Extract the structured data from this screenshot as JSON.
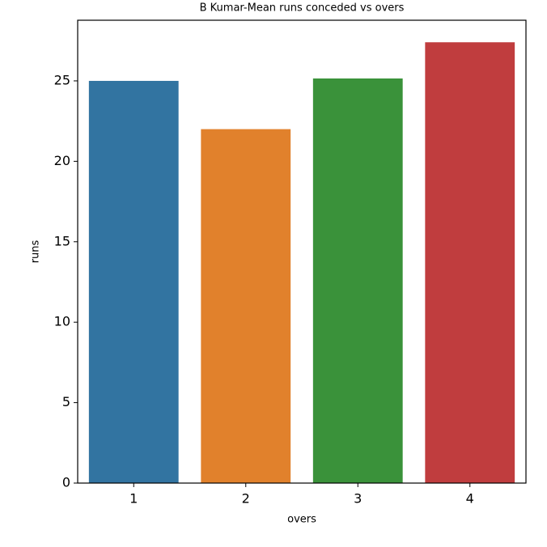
{
  "chart_data": {
    "type": "bar",
    "title": "B Kumar-Mean runs conceded vs overs",
    "x_label": "overs",
    "y_label": "runs",
    "categories": [
      "1",
      "2",
      "3",
      "4"
    ],
    "values": [
      25.0,
      22.0,
      25.15,
      27.4
    ],
    "colors": [
      "#3274a1",
      "#e1812c",
      "#3a923a",
      "#c03d3e"
    ],
    "ylim": [
      0,
      28.77
    ],
    "yticks": [
      0,
      5,
      10,
      15,
      20,
      25
    ]
  }
}
